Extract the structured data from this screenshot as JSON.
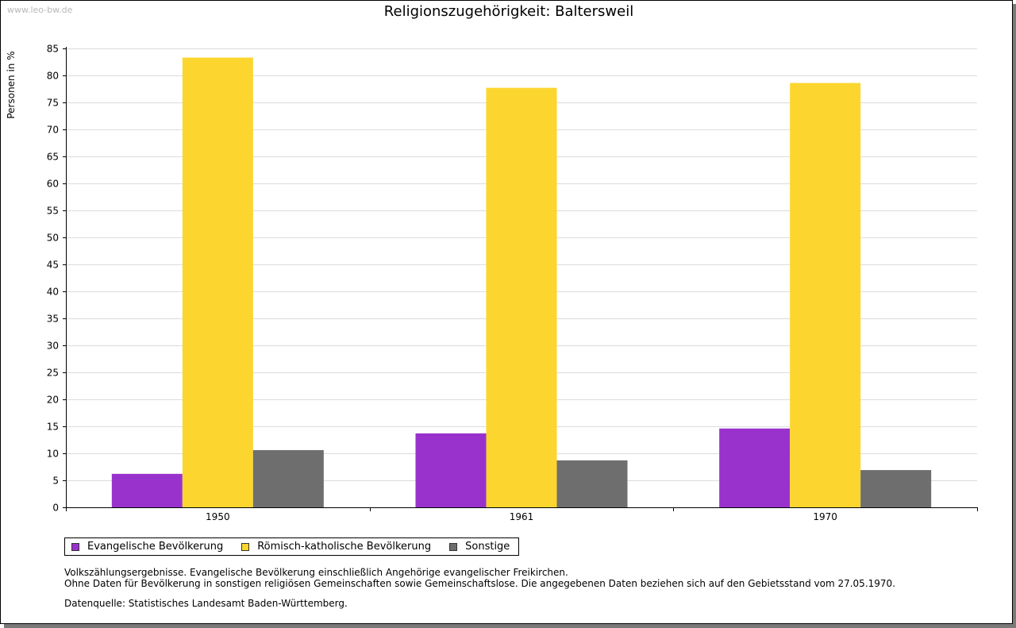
{
  "watermark": "www.leo-bw.de",
  "chart_data": {
    "type": "bar",
    "title": "Religionszugehörigkeit: Baltersweil",
    "xlabel": "",
    "ylabel": "Personen in %",
    "categories": [
      "1950",
      "1961",
      "1970"
    ],
    "series": [
      {
        "name": "Evangelische Bevölkerung",
        "color": "#9932cc",
        "values": [
          6.2,
          13.7,
          14.6
        ]
      },
      {
        "name": "Römisch-katholische Bevölkerung",
        "color": "#fcd62e",
        "values": [
          83.3,
          77.7,
          78.6
        ]
      },
      {
        "name": "Sonstige",
        "color": "#6e6e6e",
        "values": [
          10.6,
          8.7,
          6.9
        ]
      }
    ],
    "ylim": [
      0,
      85
    ],
    "yticks": [
      0,
      5,
      10,
      15,
      20,
      25,
      30,
      35,
      40,
      45,
      50,
      55,
      60,
      65,
      70,
      75,
      80,
      85
    ],
    "grid": true,
    "legend": "bottom-left"
  },
  "notes": {
    "line1": "Volkszählungsergebnisse. Evangelische Bevölkerung einschließlich Angehörige evangelischer Freikirchen.",
    "line2": "Ohne Daten für Bevölkerung in sonstigen religiösen Gemeinschaften sowie Gemeinschaftslose. Die angegebenen Daten beziehen sich auf den Gebietsstand vom 27.05.1970."
  },
  "source": "Datenquelle: Statistisches Landesamt Baden-Württemberg."
}
